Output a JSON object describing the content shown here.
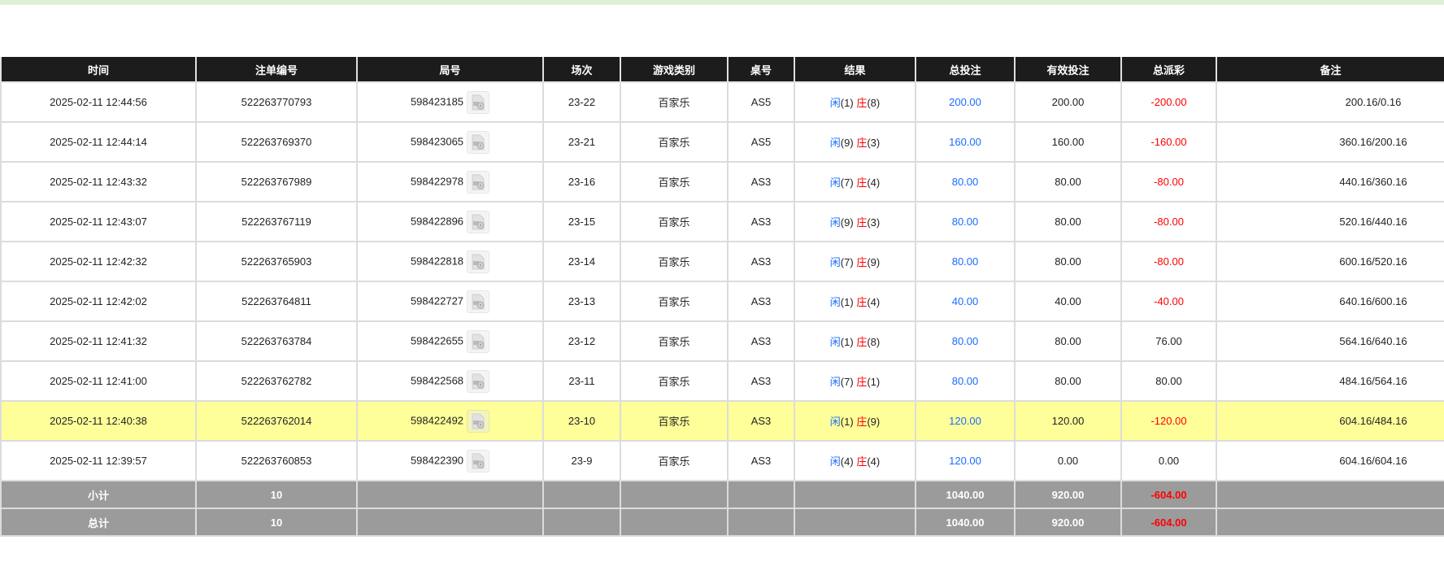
{
  "colors": {
    "header_bg": "#1c1c1c",
    "highlight_row": "#ffff99",
    "total_bg": "#9b9b9b",
    "blue": "#1a6cff",
    "red": "#ff0000",
    "top_bar": "#dff0d8"
  },
  "headers": [
    "时间",
    "注单编号",
    "局号",
    "场次",
    "游戏类别",
    "桌号",
    "结果",
    "总投注",
    "有效投注",
    "总派彩",
    "备注"
  ],
  "rows": [
    {
      "time": "2025-02-11 12:44:56",
      "bet_id": "522263770793",
      "round": "598423185",
      "shoe": "23-22",
      "game": "百家乐",
      "table": "AS5",
      "player_label": "闲",
      "player": "(1)",
      "banker_label": "庄",
      "banker": "(8)",
      "total_bet": "200.00",
      "valid_bet": "200.00",
      "payout": "-200.00",
      "payout_negative": true,
      "remark": "200.16/0.16"
    },
    {
      "time": "2025-02-11 12:44:14",
      "bet_id": "522263769370",
      "round": "598423065",
      "shoe": "23-21",
      "game": "百家乐",
      "table": "AS5",
      "player_label": "闲",
      "player": "(9)",
      "banker_label": "庄",
      "banker": "(3)",
      "total_bet": "160.00",
      "valid_bet": "160.00",
      "payout": "-160.00",
      "payout_negative": true,
      "remark": "360.16/200.16"
    },
    {
      "time": "2025-02-11 12:43:32",
      "bet_id": "522263767989",
      "round": "598422978",
      "shoe": "23-16",
      "game": "百家乐",
      "table": "AS3",
      "player_label": "闲",
      "player": "(7)",
      "banker_label": "庄",
      "banker": "(4)",
      "total_bet": "80.00",
      "valid_bet": "80.00",
      "payout": "-80.00",
      "payout_negative": true,
      "remark": "440.16/360.16"
    },
    {
      "time": "2025-02-11 12:43:07",
      "bet_id": "522263767119",
      "round": "598422896",
      "shoe": "23-15",
      "game": "百家乐",
      "table": "AS3",
      "player_label": "闲",
      "player": "(9)",
      "banker_label": "庄",
      "banker": "(3)",
      "total_bet": "80.00",
      "valid_bet": "80.00",
      "payout": "-80.00",
      "payout_negative": true,
      "remark": "520.16/440.16"
    },
    {
      "time": "2025-02-11 12:42:32",
      "bet_id": "522263765903",
      "round": "598422818",
      "shoe": "23-14",
      "game": "百家乐",
      "table": "AS3",
      "player_label": "闲",
      "player": "(7)",
      "banker_label": "庄",
      "banker": "(9)",
      "total_bet": "80.00",
      "valid_bet": "80.00",
      "payout": "-80.00",
      "payout_negative": true,
      "remark": "600.16/520.16"
    },
    {
      "time": "2025-02-11 12:42:02",
      "bet_id": "522263764811",
      "round": "598422727",
      "shoe": "23-13",
      "game": "百家乐",
      "table": "AS3",
      "player_label": "闲",
      "player": "(1)",
      "banker_label": "庄",
      "banker": "(4)",
      "total_bet": "40.00",
      "valid_bet": "40.00",
      "payout": "-40.00",
      "payout_negative": true,
      "remark": "640.16/600.16"
    },
    {
      "time": "2025-02-11 12:41:32",
      "bet_id": "522263763784",
      "round": "598422655",
      "shoe": "23-12",
      "game": "百家乐",
      "table": "AS3",
      "player_label": "闲",
      "player": "(1)",
      "banker_label": "庄",
      "banker": "(8)",
      "total_bet": "80.00",
      "valid_bet": "80.00",
      "payout": "76.00",
      "payout_negative": false,
      "remark": "564.16/640.16"
    },
    {
      "time": "2025-02-11 12:41:00",
      "bet_id": "522263762782",
      "round": "598422568",
      "shoe": "23-11",
      "game": "百家乐",
      "table": "AS3",
      "player_label": "闲",
      "player": "(7)",
      "banker_label": "庄",
      "banker": "(1)",
      "total_bet": "80.00",
      "valid_bet": "80.00",
      "payout": "80.00",
      "payout_negative": false,
      "remark": "484.16/564.16"
    },
    {
      "time": "2025-02-11 12:40:38",
      "bet_id": "522263762014",
      "round": "598422492",
      "shoe": "23-10",
      "game": "百家乐",
      "table": "AS3",
      "player_label": "闲",
      "player": "(1)",
      "banker_label": "庄",
      "banker": "(9)",
      "total_bet": "120.00",
      "valid_bet": "120.00",
      "payout": "-120.00",
      "payout_negative": true,
      "remark": "604.16/484.16",
      "highlighted": true
    },
    {
      "time": "2025-02-11 12:39:57",
      "bet_id": "522263760853",
      "round": "598422390",
      "shoe": "23-9",
      "game": "百家乐",
      "table": "AS3",
      "player_label": "闲",
      "player": "(4)",
      "banker_label": "庄",
      "banker": "(4)",
      "total_bet": "120.00",
      "valid_bet": "0.00",
      "payout": "0.00",
      "payout_negative": false,
      "remark": "604.16/604.16"
    }
  ],
  "subtotal": {
    "label": "小计",
    "count": "10",
    "total_bet": "1040.00",
    "valid_bet": "920.00",
    "payout": "-604.00"
  },
  "total": {
    "label": "总计",
    "count": "10",
    "total_bet": "1040.00",
    "valid_bet": "920.00",
    "payout": "-604.00"
  }
}
